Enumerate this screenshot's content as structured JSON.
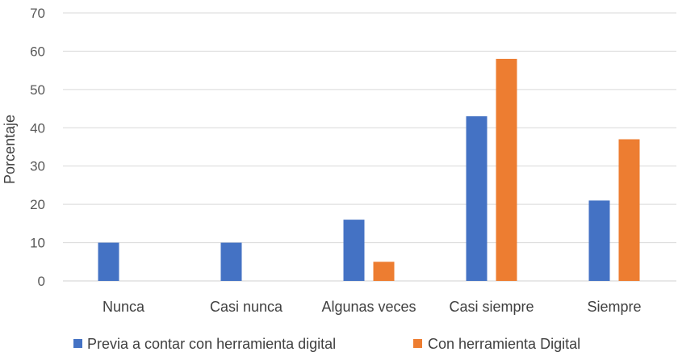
{
  "chart_data": {
    "type": "bar",
    "categories": [
      "Nunca",
      "Casi nunca",
      "Algunas veces",
      "Casi siempre",
      "Siempre"
    ],
    "series": [
      {
        "name": "Previa a contar con herramienta digital",
        "values": [
          10,
          10,
          16,
          43,
          21
        ],
        "color": "#4472c4"
      },
      {
        "name": "Con herramienta Digital",
        "values": [
          0,
          0,
          5,
          58,
          37
        ],
        "color": "#ed7d31"
      }
    ],
    "title": "",
    "xlabel": "",
    "ylabel": "Porcentaje",
    "ylim": [
      0,
      70
    ],
    "yticks": [
      "0",
      "10",
      "20",
      "30",
      "40",
      "50",
      "60",
      "70"
    ],
    "grid": true,
    "legend_position": "bottom"
  }
}
